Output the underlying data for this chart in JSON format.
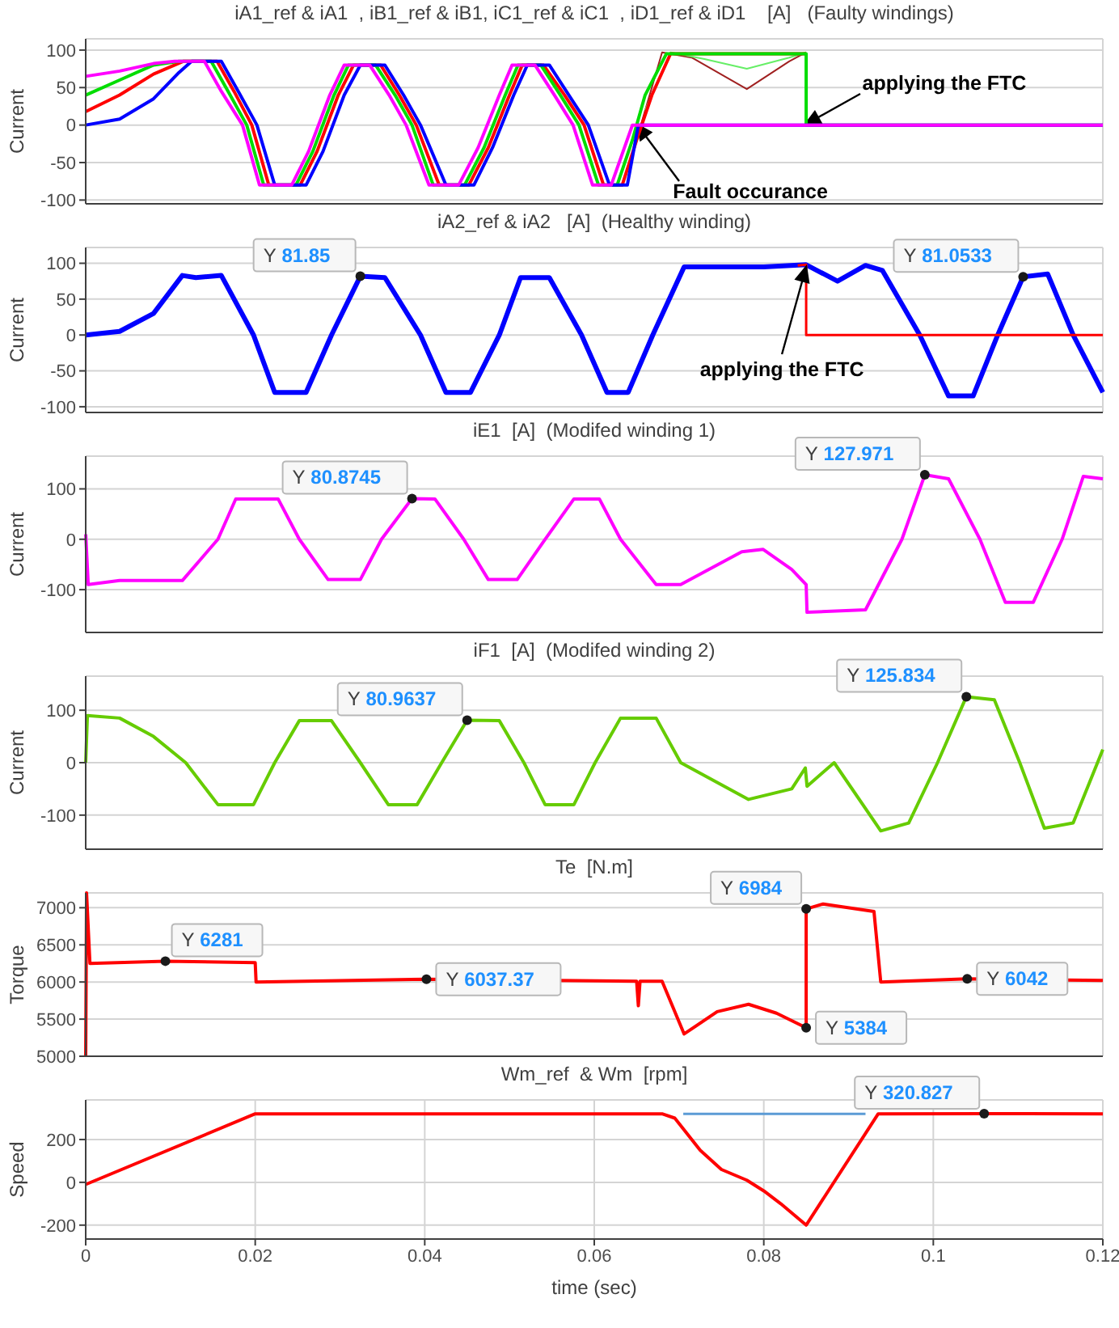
{
  "chart_data": [
    {
      "type": "line",
      "title": "iA1_ref & iA1  , iB1_ref & iB1, iC1_ref & iC1  , iD1_ref & iD1    [A]   (Faulty windings)",
      "ylabel": "Current",
      "xlim": [
        0,
        0.12
      ],
      "xticks": [
        0,
        0.02,
        0.04,
        0.06,
        0.08,
        0.1,
        0.12
      ],
      "ylim": [
        -105,
        115
      ],
      "yticks": [
        -100,
        -50,
        0,
        50,
        100
      ],
      "grid": true,
      "marker": "none",
      "tick_labels": "y",
      "series": [
        {
          "color": "#a02020",
          "x": [
            0.0655,
            0.068,
            0.0715,
            0.078,
            0.083,
            0.085
          ],
          "values": [
            0,
            97,
            90,
            48,
            85,
            97
          ]
        },
        {
          "color": "#66ee66",
          "x": [
            0.066,
            0.069,
            0.073,
            0.078,
            0.083,
            0.085
          ],
          "values": [
            20,
            97,
            88,
            75,
            90,
            97
          ]
        },
        {
          "color": "#ff0000",
          "x": [
            0,
            0.004,
            0.008,
            0.0115,
            0.0155,
            0.0175,
            0.0196,
            0.0216,
            0.0253,
            0.0273,
            0.0298,
            0.0316,
            0.0348,
            0.037,
            0.039,
            0.0417,
            0.0452,
            0.0475,
            0.05,
            0.0515,
            0.054,
            0.0565,
            0.0588,
            0.0611,
            0.0633,
            0.065,
            0.0668,
            0.069,
            0.085
          ],
          "values": [
            18,
            40,
            68,
            85,
            85,
            45,
            0,
            -80,
            -80,
            -35,
            40,
            80,
            80,
            40,
            0,
            -80,
            -80,
            -30,
            40,
            80,
            80,
            40,
            0,
            -80,
            -80,
            -20,
            40,
            95,
            95
          ]
        },
        {
          "color": "#00dd00",
          "x": [
            0,
            0.004,
            0.008,
            0.011,
            0.0148,
            0.0168,
            0.019,
            0.021,
            0.0248,
            0.0268,
            0.0293,
            0.031,
            0.0342,
            0.0365,
            0.0385,
            0.041,
            0.0447,
            0.047,
            0.0495,
            0.051,
            0.0537,
            0.056,
            0.0582,
            0.0605,
            0.0627,
            0.0645,
            0.066,
            0.0685,
            0.085,
            0.085,
            0.12
          ],
          "values": [
            40,
            60,
            80,
            85,
            85,
            45,
            0,
            -80,
            -80,
            -35,
            40,
            80,
            80,
            40,
            0,
            -80,
            -80,
            -30,
            40,
            80,
            80,
            40,
            0,
            -80,
            -80,
            -20,
            40,
            95,
            95,
            0,
            0
          ]
        },
        {
          "color": "#0000ff",
          "x": [
            0,
            0.004,
            0.008,
            0.011,
            0.0125,
            0.016,
            0.018,
            0.0202,
            0.0223,
            0.026,
            0.028,
            0.0305,
            0.0324,
            0.0353,
            0.0375,
            0.0395,
            0.0425,
            0.0458,
            0.048,
            0.0505,
            0.0521,
            0.0547,
            0.057,
            0.0593,
            0.0618,
            0.0639,
            0.0652,
            0.12
          ],
          "values": [
            0,
            8,
            35,
            70,
            85,
            85,
            45,
            0,
            -80,
            -80,
            -35,
            40,
            80,
            80,
            40,
            0,
            -80,
            -80,
            -30,
            40,
            80,
            80,
            40,
            0,
            -80,
            -80,
            0,
            0
          ]
        },
        {
          "color": "#ff00ff",
          "x": [
            0,
            0.004,
            0.008,
            0.0105,
            0.014,
            0.016,
            0.0185,
            0.0205,
            0.0243,
            0.0263,
            0.0288,
            0.0305,
            0.0335,
            0.0358,
            0.0378,
            0.0405,
            0.044,
            0.0463,
            0.0488,
            0.0503,
            0.053,
            0.0553,
            0.0575,
            0.0598,
            0.062,
            0.0645,
            0.12
          ],
          "values": [
            65,
            72,
            82,
            85,
            85,
            45,
            0,
            -80,
            -80,
            -35,
            40,
            80,
            80,
            40,
            0,
            -80,
            -80,
            -30,
            40,
            80,
            80,
            40,
            0,
            -80,
            -80,
            0,
            0
          ]
        }
      ],
      "annotations": [
        "Fault occurance",
        "applying the FTC"
      ]
    },
    {
      "type": "line",
      "title": "iA2_ref & iA2   [A]  (Healthy winding)",
      "ylabel": "Current",
      "xlim": [
        0,
        0.12
      ],
      "xticks": [
        0,
        0.02,
        0.04,
        0.06,
        0.08,
        0.1,
        0.12
      ],
      "ylim": [
        -108,
        122
      ],
      "yticks": [
        -100,
        -50,
        0,
        50,
        100
      ],
      "grid": true,
      "tick_labels": "y",
      "series": [
        {
          "color": "#0000ff",
          "x": [
            0,
            0.004,
            0.008,
            0.0114,
            0.013,
            0.016,
            0.0198,
            0.0223,
            0.026,
            0.029,
            0.0324,
            0.0353,
            0.0395,
            0.0425,
            0.0454,
            0.0488,
            0.0513,
            0.0547,
            0.0585,
            0.0615,
            0.064,
            0.0669,
            0.0706,
            0.08,
            0.085,
            0.0887,
            0.092,
            0.094,
            0.0984,
            0.1018,
            0.1047,
            0.1076,
            0.1106,
            0.1135,
            0.1165,
            0.12
          ],
          "values": [
            0,
            5,
            30,
            83,
            80,
            83,
            0,
            -80,
            -80,
            0,
            81.85,
            80,
            0,
            -80,
            -80,
            0,
            80,
            80,
            0,
            -80,
            -80,
            0,
            95,
            95,
            98,
            75,
            97,
            90,
            0,
            -85,
            -85,
            0,
            81.0533,
            85,
            0,
            -80
          ]
        },
        {
          "color": "#ff0000",
          "x": [
            0.084,
            0.085,
            0.085,
            0.12
          ],
          "values": [
            97,
            98,
            0,
            0
          ]
        },
        {
          "type": "scatter",
          "color": "#1a1a1a",
          "x": [
            0.0324,
            0.1106
          ],
          "values": [
            81.85,
            81.0533
          ],
          "value_labels": [
            "Y 81.85",
            "Y 81.0533"
          ]
        }
      ],
      "annotations": [
        {
          "text": "applying the FTC",
          "x": 0.085,
          "y": 95
        }
      ]
    },
    {
      "type": "line",
      "title": "iE1  [A]  (Modifed winding 1)",
      "ylabel": "Current",
      "xlim": [
        0,
        0.12
      ],
      "xticks": [
        0,
        0.02,
        0.04,
        0.06,
        0.08,
        0.1,
        0.12
      ],
      "ylim": [
        -185,
        165
      ],
      "yticks": [
        -100,
        0,
        100
      ],
      "grid": true,
      "tick_labels": "y",
      "series": [
        {
          "color": "#ff00ff",
          "x": [
            0,
            0.0003,
            0.004,
            0.0114,
            0.0156,
            0.0177,
            0.0227,
            0.0252,
            0.0286,
            0.0324,
            0.0349,
            0.0385,
            0.0412,
            0.0446,
            0.0475,
            0.0509,
            0.0542,
            0.0576,
            0.0606,
            0.0631,
            0.0673,
            0.0702,
            0.0774,
            0.0799,
            0.0833,
            0.085,
            0.0851,
            0.092,
            0.0963,
            0.099,
            0.1018,
            0.1055,
            0.1085,
            0.1118,
            0.1152,
            0.1177,
            0.12
          ],
          "values": [
            10,
            -90,
            -82,
            -82,
            0,
            80,
            80,
            0,
            -80,
            -80,
            0,
            80.8745,
            80,
            0,
            -80,
            -80,
            0,
            80,
            80,
            0,
            -90,
            -90,
            -25,
            -20,
            -60,
            -90,
            -145,
            -140,
            0,
            127.971,
            120,
            0,
            -125,
            -125,
            0,
            125,
            120
          ]
        },
        {
          "type": "scatter",
          "color": "#1a1a1a",
          "x": [
            0.0385,
            0.099
          ],
          "values": [
            80.8745,
            127.971
          ],
          "value_labels": [
            "Y 80.8745",
            "Y 127.971"
          ]
        }
      ]
    },
    {
      "type": "line",
      "title": "iF1  [A]  (Modifed winding 2)",
      "ylabel": "Current",
      "xlim": [
        0,
        0.12
      ],
      "xticks": [
        0,
        0.02,
        0.04,
        0.06,
        0.08,
        0.1,
        0.12
      ],
      "ylim": [
        -165,
        165
      ],
      "yticks": [
        -100,
        0,
        100
      ],
      "grid": true,
      "tick_labels": "y",
      "series": [
        {
          "color": "#66cc00",
          "x": [
            0,
            0.0002,
            0.004,
            0.008,
            0.0118,
            0.0156,
            0.0198,
            0.0223,
            0.0252,
            0.029,
            0.0324,
            0.0357,
            0.0391,
            0.042,
            0.045,
            0.0488,
            0.0517,
            0.0542,
            0.0576,
            0.0601,
            0.0631,
            0.0673,
            0.0702,
            0.0782,
            0.0833,
            0.0849,
            0.0851,
            0.0883,
            0.0938,
            0.0971,
            0.1005,
            0.1039,
            0.1072,
            0.1102,
            0.1131,
            0.1165,
            0.12
          ],
          "values": [
            0,
            90,
            85,
            50,
            0,
            -80,
            -80,
            0,
            80,
            80,
            0,
            -80,
            -80,
            0,
            80.9637,
            80,
            0,
            -80,
            -80,
            0,
            85,
            85,
            0,
            -70,
            -50,
            -10,
            -45,
            0,
            -130,
            -115,
            0,
            125.834,
            120,
            0,
            -125,
            -115,
            25
          ]
        },
        {
          "type": "scatter",
          "color": "#1a1a1a",
          "x": [
            0.045,
            0.1039
          ],
          "values": [
            80.9637,
            125.834
          ],
          "value_labels": [
            "Y 80.9637",
            "Y 125.834"
          ]
        }
      ]
    },
    {
      "type": "line",
      "title": "Te  [N.m]",
      "ylabel": "Torque",
      "xlim": [
        0,
        0.12
      ],
      "xticks": [
        0,
        0.02,
        0.04,
        0.06,
        0.08,
        0.1,
        0.12
      ],
      "ylim": [
        5000,
        7200
      ],
      "yticks": [
        5000,
        5500,
        6000,
        6500,
        7000
      ],
      "grid": true,
      "tick_labels": "y",
      "series": [
        {
          "color": "#ff0000",
          "x": [
            0,
            0.0001,
            0.0005,
            0.0094,
            0.02,
            0.0201,
            0.0402,
            0.065,
            0.0652,
            0.0654,
            0.068,
            0.0706,
            0.0745,
            0.0782,
            0.0815,
            0.085,
            0.085,
            0.087,
            0.093,
            0.0938,
            0.104,
            0.12
          ],
          "values": [
            5000,
            7200,
            6250,
            6281,
            6260,
            6000,
            6037.37,
            6010,
            5680,
            6010,
            6010,
            5300,
            5600,
            5700,
            5580,
            5384,
            6984,
            7050,
            6950,
            6000,
            6042,
            6020
          ]
        },
        {
          "type": "scatter",
          "color": "#1a1a1a",
          "x": [
            0.0094,
            0.0402,
            0.085,
            0.085,
            0.104
          ],
          "values": [
            6281,
            6037.37,
            6984,
            5384,
            6042
          ],
          "value_labels": [
            "Y 6281",
            "Y 6037.37",
            "Y 6984",
            "Y 5384",
            "Y 6042"
          ]
        }
      ]
    },
    {
      "type": "line",
      "title": "Wm_ref  & Wm  [rpm]",
      "ylabel": "Speed",
      "xlabel": "time (sec)",
      "xlim": [
        0,
        0.12
      ],
      "xticks": [
        0,
        0.02,
        0.04,
        0.06,
        0.08,
        0.1,
        0.12
      ],
      "ylim": [
        -265,
        385
      ],
      "yticks": [
        -200,
        0,
        200
      ],
      "grid": true,
      "series": [
        {
          "color": "#5b9bd5",
          "x": [
            0.0705,
            0.092
          ],
          "values": [
            320,
            320
          ]
        },
        {
          "color": "#ff0000",
          "x": [
            0,
            0.02,
            0.068,
            0.0695,
            0.0725,
            0.075,
            0.078,
            0.08,
            0.082,
            0.085,
            0.0935,
            0.106,
            0.12
          ],
          "values": [
            -10,
            320,
            320,
            300,
            150,
            60,
            10,
            -40,
            -100,
            -200,
            320,
            320.827,
            320
          ]
        },
        {
          "type": "scatter",
          "color": "#1a1a1a",
          "x": [
            0.106
          ],
          "values": [
            320.827
          ],
          "value_labels": [
            "Y 320.827"
          ]
        }
      ]
    }
  ]
}
